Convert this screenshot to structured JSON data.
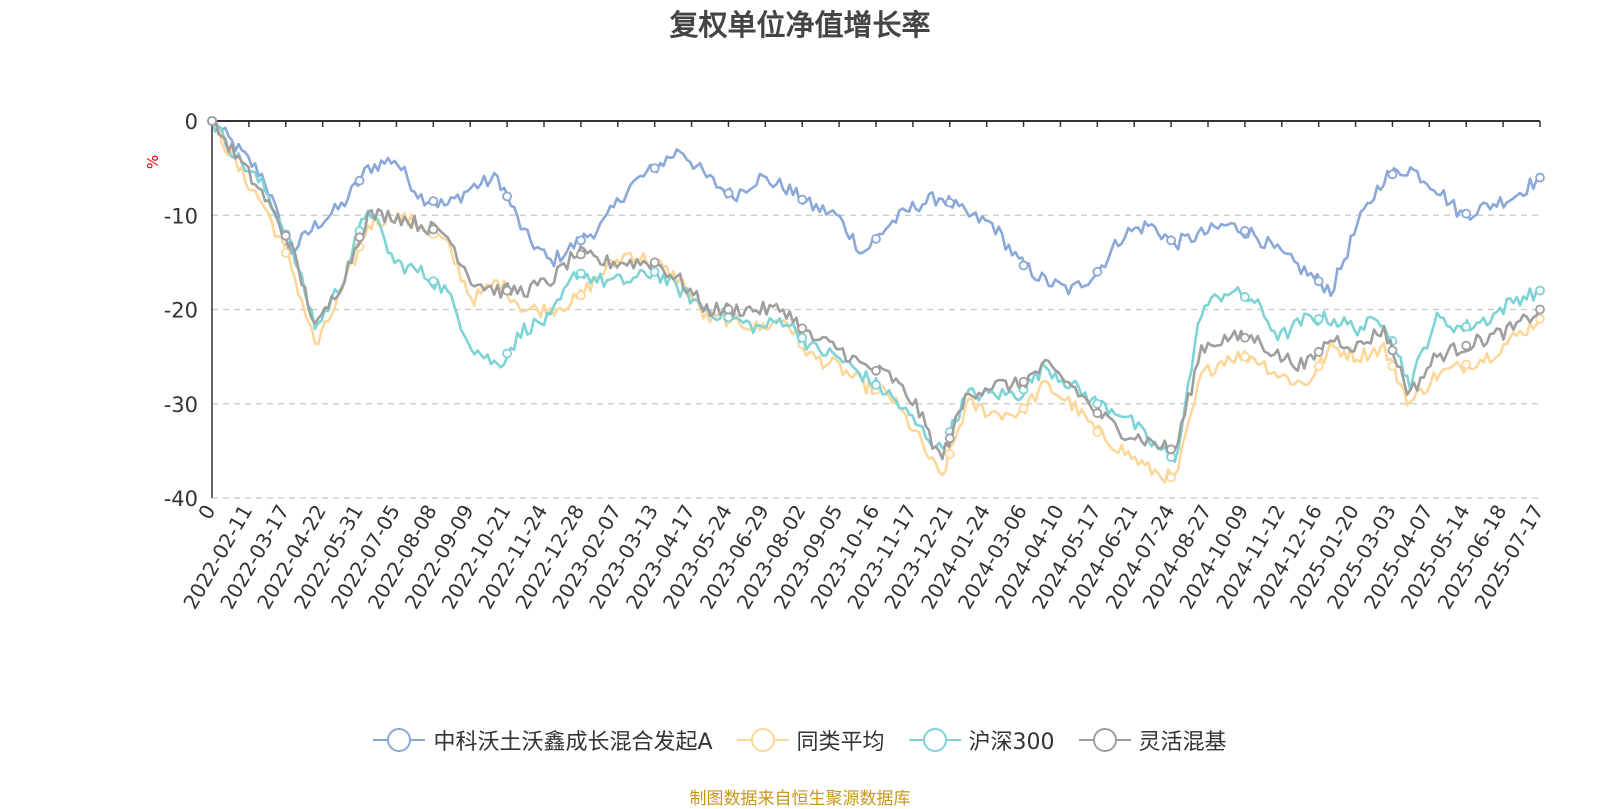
{
  "title": "复权单位净值增长率",
  "footer": "制图数据来自恒生聚源数据库",
  "chart_data": {
    "type": "line",
    "title": "复权单位净值增长率",
    "ylabel": "%",
    "ylim": [
      -40,
      0
    ],
    "yticks": [
      0,
      -10,
      -20,
      -30,
      -40
    ],
    "grid": "horizontal-dashed",
    "legend": "bottom-center",
    "xticks": [
      "0",
      "2022-02-11",
      "2022-03-17",
      "2022-04-22",
      "2022-05-31",
      "2022-07-05",
      "2022-08-08",
      "2022-09-09",
      "2022-10-21",
      "2022-11-24",
      "2022-12-28",
      "2023-02-07",
      "2023-03-13",
      "2023-04-17",
      "2023-05-24",
      "2023-06-29",
      "2023-08-02",
      "2023-09-05",
      "2023-10-16",
      "2023-11-17",
      "2023-12-21",
      "2024-01-24",
      "2024-03-06",
      "2024-04-10",
      "2024-05-17",
      "2024-06-21",
      "2024-07-24",
      "2024-08-27",
      "2024-10-09",
      "2024-11-12",
      "2024-12-16",
      "2025-01-20",
      "2025-03-03",
      "2025-04-07",
      "2025-05-14",
      "2025-06-18",
      "2025-07-17"
    ],
    "series": [
      {
        "name": "中科沃土沃鑫成长混合发起A",
        "color": "#8aa8d8",
        "values": [
          0,
          -3,
          -6,
          -14,
          -11,
          -9,
          -5,
          -4,
          -8,
          -9,
          -7,
          -6,
          -12,
          -15,
          -13,
          -11,
          -7,
          -5,
          -3,
          -6,
          -8,
          -6,
          -7,
          -9,
          -10,
          -14,
          -11,
          -9,
          -8,
          -10,
          -11,
          -15,
          -17,
          -18,
          -16,
          -12,
          -11,
          -13,
          -12,
          -11,
          -12,
          -14,
          -16,
          -18,
          -11,
          -6,
          -5,
          -7,
          -10,
          -9,
          -8,
          -6
        ]
      },
      {
        "name": "同类平均",
        "color": "#fcd79a",
        "values": [
          0,
          -5,
          -9,
          -15,
          -24,
          -18,
          -11,
          -10,
          -11,
          -13,
          -19,
          -17,
          -20,
          -20,
          -19,
          -16,
          -14,
          -15,
          -17,
          -21,
          -21,
          -22,
          -21,
          -25,
          -26,
          -28,
          -29,
          -33,
          -38,
          -30,
          -31,
          -31,
          -28,
          -30,
          -33,
          -35,
          -37,
          -38,
          -27,
          -25,
          -25,
          -27,
          -28,
          -24,
          -25,
          -24,
          -30,
          -27,
          -26,
          -25,
          -23,
          -21
        ]
      },
      {
        "name": "沪深300",
        "color": "#7ed3d6",
        "values": [
          0,
          -4,
          -7,
          -13,
          -22,
          -17,
          -9,
          -15,
          -16,
          -18,
          -24,
          -26,
          -22,
          -21,
          -16,
          -17,
          -17,
          -16,
          -18,
          -20,
          -21,
          -22,
          -21,
          -24,
          -25,
          -27,
          -29,
          -32,
          -35,
          -29,
          -29,
          -29,
          -26,
          -28,
          -30,
          -31,
          -34,
          -36,
          -20,
          -18,
          -19,
          -23,
          -21,
          -21,
          -22,
          -21,
          -28,
          -21,
          -22,
          -21,
          -19,
          -18
        ]
      },
      {
        "name": "灵活混基",
        "color": "#9e9e9e",
        "values": [
          0,
          -4,
          -8,
          -13,
          -22,
          -17,
          -10,
          -10,
          -11,
          -12,
          -17,
          -18,
          -18,
          -17,
          -14,
          -15,
          -15,
          -15,
          -17,
          -20,
          -20,
          -20,
          -20,
          -23,
          -24,
          -26,
          -27,
          -30,
          -36,
          -29,
          -28,
          -28,
          -26,
          -28,
          -31,
          -33,
          -34,
          -35,
          -24,
          -23,
          -23,
          -25,
          -26,
          -23,
          -24,
          -22,
          -29,
          -25,
          -24,
          -23,
          -22,
          -20
        ]
      }
    ]
  }
}
